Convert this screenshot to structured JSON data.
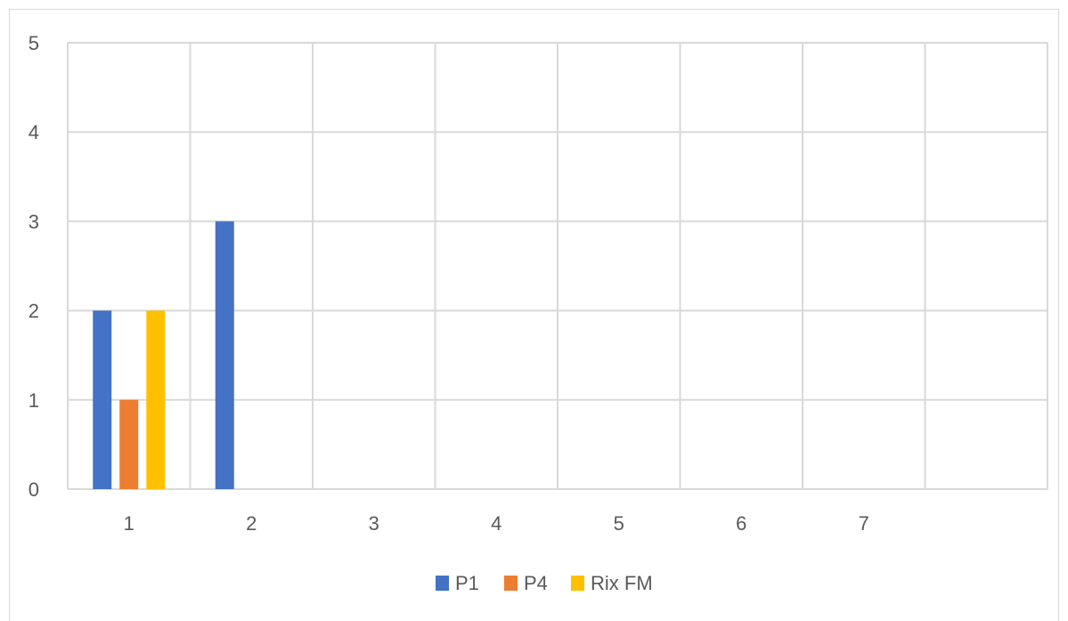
{
  "chart_data": {
    "type": "bar",
    "title": "",
    "xlabel": "",
    "ylabel": "",
    "categories": [
      "1",
      "2",
      "3",
      "4",
      "5",
      "6",
      "7",
      ""
    ],
    "series": [
      {
        "name": "P1",
        "color": "#4472c4",
        "values": [
          2,
          3,
          0,
          0,
          0,
          0,
          0,
          0
        ]
      },
      {
        "name": "P4",
        "color": "#ed7d31",
        "values": [
          1,
          0,
          0,
          0,
          0,
          0,
          0,
          0
        ]
      },
      {
        "name": "Rix FM",
        "color": "#ffc000",
        "values": [
          2,
          0,
          0,
          0,
          0,
          0,
          0,
          0
        ]
      }
    ],
    "ylim": [
      0,
      5
    ],
    "yticks": [
      0,
      1,
      2,
      3,
      4,
      5
    ],
    "grid": true,
    "legend_position": "bottom",
    "gridline_color": "#d9d9d9",
    "tick_label_color": "#595959"
  }
}
